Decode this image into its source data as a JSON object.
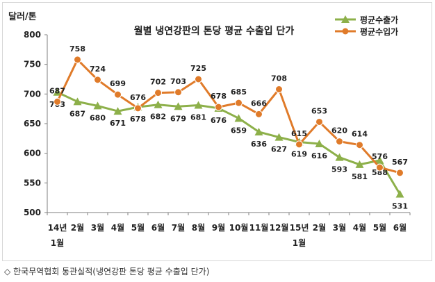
{
  "chart_data": {
    "type": "line",
    "title": "월별 냉연강판의 톤당 평균 수출입 단가",
    "ylabel": "달러/톤",
    "xlabel": "",
    "ylim": [
      500,
      800
    ],
    "yticks": [
      500,
      550,
      600,
      650,
      700,
      750,
      800
    ],
    "categories": [
      "14년 1월",
      "2월",
      "3월",
      "4월",
      "5월",
      "6월",
      "7월",
      "8월",
      "9월",
      "10월",
      "11월",
      "12월",
      "15년 1월",
      "2월",
      "3월",
      "4월",
      "5월",
      "6월"
    ],
    "category_lines": [
      [
        "14년",
        "1월"
      ],
      [
        "2월"
      ],
      [
        "3월"
      ],
      [
        "4월"
      ],
      [
        "5월"
      ],
      [
        "6월"
      ],
      [
        "7월"
      ],
      [
        "8월"
      ],
      [
        "9월"
      ],
      [
        "10월"
      ],
      [
        "11월"
      ],
      [
        "12월"
      ],
      [
        "15년",
        "1월"
      ],
      [
        "2월"
      ],
      [
        "3월"
      ],
      [
        "4월"
      ],
      [
        "5월"
      ],
      [
        "6월"
      ]
    ],
    "grid": false,
    "legend_position": "top-right",
    "series": [
      {
        "name": "평균수출가",
        "color": "#8db04a",
        "marker": "triangle",
        "values": [
          703,
          687,
          680,
          671,
          678,
          682,
          679,
          681,
          676,
          659,
          636,
          627,
          619,
          616,
          593,
          581,
          588,
          531
        ],
        "label_position": "below"
      },
      {
        "name": "평균수입가",
        "color": "#e07b2a",
        "marker": "circle",
        "values": [
          687,
          758,
          724,
          699,
          676,
          702,
          703,
          725,
          678,
          685,
          666,
          708,
          615,
          653,
          620,
          614,
          576,
          567
        ],
        "label_position": "above"
      }
    ]
  },
  "caption": "◇ 한국무역협회 통관실적(냉연강판 톤당 평균 수출입 단가)"
}
